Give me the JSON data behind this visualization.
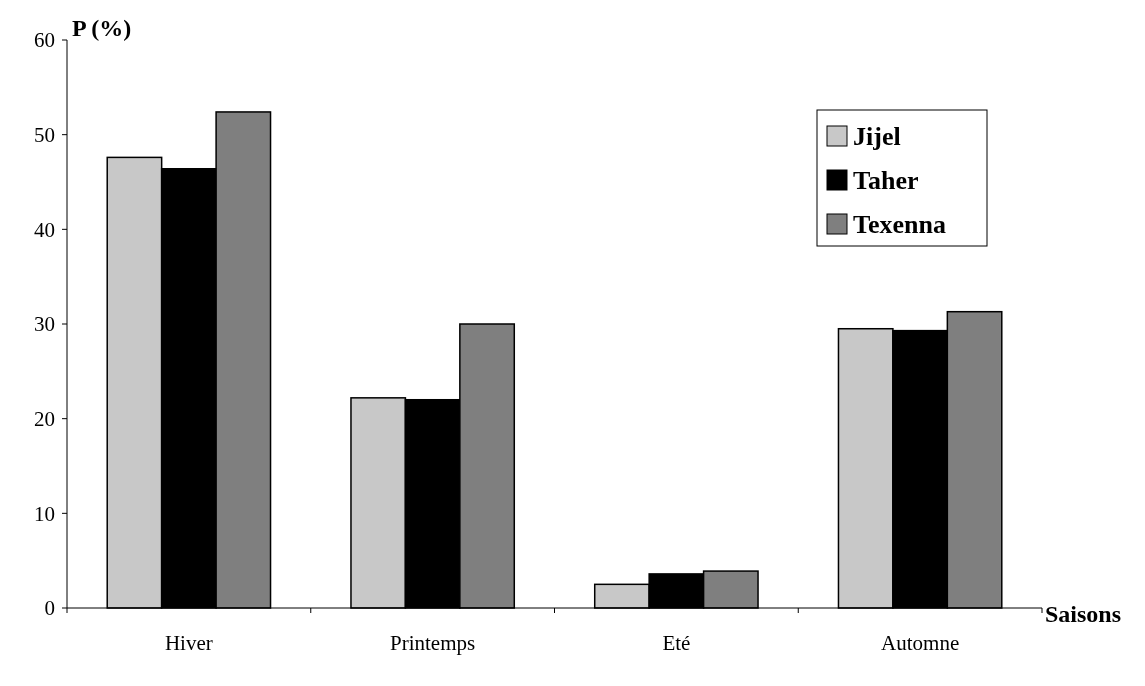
{
  "chart_data": {
    "type": "bar",
    "xlabel": "Saisons",
    "ylabel": "P (%)",
    "categories": [
      "Hiver",
      "Printemps",
      "Eté",
      "Automne"
    ],
    "series": [
      {
        "name": "Jijel",
        "color": "#c8c8c8",
        "values": [
          47.6,
          22.2,
          2.5,
          29.5
        ]
      },
      {
        "name": "Taher",
        "color": "#000000",
        "values": [
          46.4,
          22.0,
          3.6,
          29.3
        ]
      },
      {
        "name": "Texenna",
        "color": "#7f7f7f",
        "values": [
          52.4,
          30.0,
          3.9,
          31.3
        ]
      }
    ],
    "ylim": [
      0,
      60
    ],
    "yticks": [
      0,
      10,
      20,
      30,
      40,
      50,
      60
    ],
    "grid": false,
    "legend": "top right"
  }
}
